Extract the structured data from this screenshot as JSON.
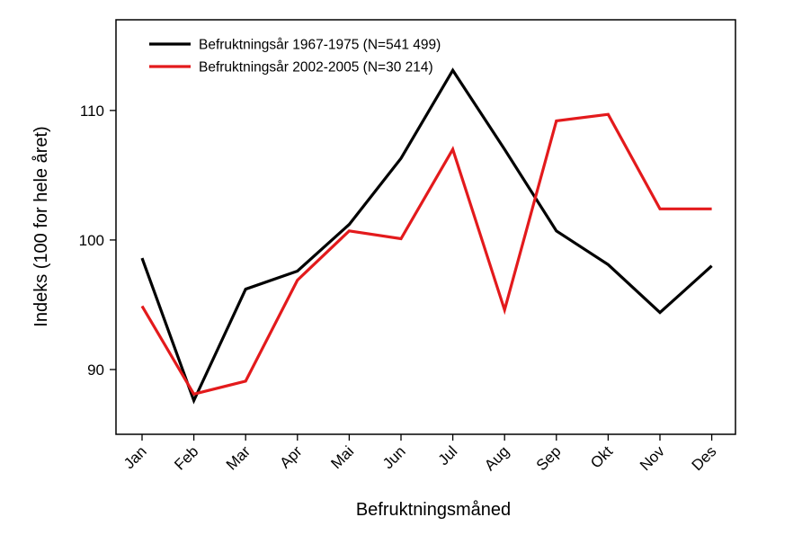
{
  "chart_data": {
    "type": "line",
    "title": "",
    "xlabel": "Befruktningsmåned",
    "ylabel": "Indeks (100 for hele året)",
    "categories": [
      "Jan",
      "Feb",
      "Mar",
      "Apr",
      "Mai",
      "Jun",
      "Jul",
      "Aug",
      "Sep",
      "Okt",
      "Nov",
      "Des"
    ],
    "ylim": [
      85,
      117
    ],
    "yticks": [
      90,
      100,
      110
    ],
    "grid": false,
    "legend_position": "top-left",
    "series": [
      {
        "name": "Befruktningsår 1967-1975 (N=541 499)",
        "color": "#000000",
        "values": [
          98.6,
          87.6,
          96.2,
          97.6,
          101.2,
          106.3,
          113.1,
          107.0,
          100.7,
          98.1,
          94.4,
          98.0
        ]
      },
      {
        "name": "Befruktningsår 2002-2005 (N=30 214)",
        "color": "#e31a1c",
        "values": [
          94.9,
          88.1,
          89.1,
          96.9,
          100.7,
          100.1,
          107.0,
          94.6,
          109.2,
          109.7,
          102.4,
          102.4
        ]
      }
    ]
  }
}
